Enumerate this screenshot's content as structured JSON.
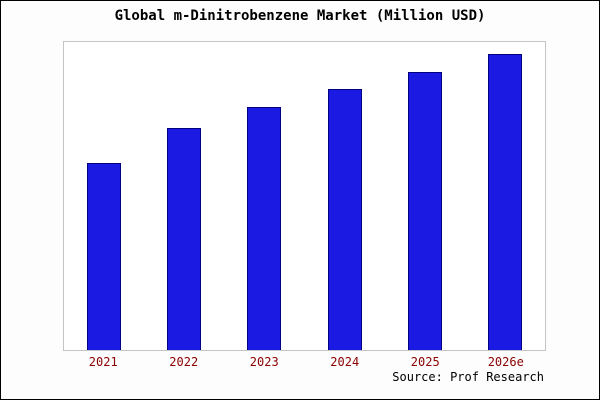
{
  "chart_data": {
    "type": "bar",
    "title": "Global m-Dinitrobenzene Market (Million USD)",
    "categories": [
      "2021",
      "2022",
      "2023",
      "2024",
      "2025",
      "2026e"
    ],
    "values": [
      63,
      75,
      82,
      88,
      94,
      100
    ],
    "xlabel": "",
    "ylabel": "",
    "ylim": [
      0,
      104
    ],
    "grid": false,
    "legend_position": "none",
    "source": "Source: Prof Research",
    "colors": {
      "bar_fill": "#1b1ae3",
      "bar_border": "#000080",
      "tick_label": "#8B0000",
      "title_text": "#000000",
      "plot_border": "#c4c4c4",
      "plot_background": "#ffffff"
    }
  }
}
